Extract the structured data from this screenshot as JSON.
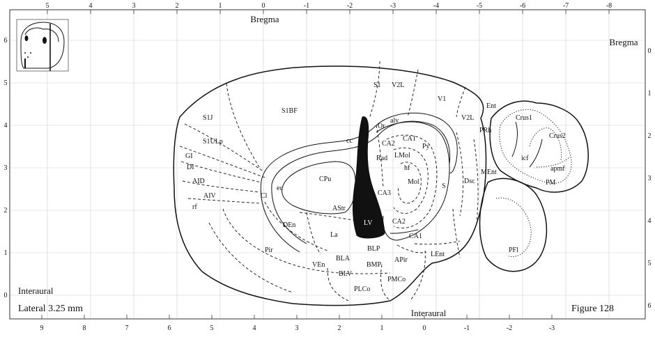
{
  "figure": {
    "lateral_label": "Lateral 3.25 mm",
    "figure_label": "Figure 128",
    "bregma_top": "Bregma",
    "bregma_right": "Bregma",
    "interaural_bottom": "Interaural",
    "interaural_left": "Interaural"
  },
  "axes": {
    "top": [
      "5",
      "4",
      "3",
      "2",
      "1",
      "0",
      "-1",
      "-2",
      "-3",
      "-4",
      "-5",
      "-6",
      "-7",
      "-8"
    ],
    "bottom": [
      "9",
      "8",
      "7",
      "6",
      "5",
      "4",
      "3",
      "2",
      "1",
      "0",
      "-1",
      "-2",
      "-3"
    ],
    "left": [
      "6",
      "5",
      "4",
      "3",
      "2",
      "1",
      "0"
    ],
    "right": [
      "0",
      "1",
      "2",
      "3",
      "4",
      "5",
      "6"
    ]
  },
  "regions": {
    "s1": "S1",
    "v2l_top": "V2L",
    "v1": "V1",
    "ent": "Ent",
    "v2l": "V2L",
    "prh": "PRh",
    "crus1": "Crus1",
    "crus2": "Crus2",
    "icf": "icf",
    "apmf": "apmf",
    "pm": "PM",
    "pfl": "PFl",
    "s1j": "S1J",
    "s1bf": "S1BF",
    "s1ulp": "S1ULp",
    "gi": "GI",
    "di": "DI",
    "aid": "AID",
    "aiv": "AIV",
    "rf": "rf",
    "cl": "Cl",
    "ec": "ec",
    "cpu": "CPu",
    "cc": "cc",
    "astr": "AStr",
    "den": "DEn",
    "la": "La",
    "lv": "LV",
    "or": "Or",
    "alv": "alv",
    "ca1_top": "CA1",
    "py": "Py",
    "ca2_top": "CA2",
    "rad": "Rad",
    "lmol": "LMol",
    "hf": "hf",
    "mol": "Mol",
    "ca3": "CA3",
    "s": "S",
    "dsc": "Dsc",
    "ment": "MEnt",
    "ca2_bottom": "CA2",
    "ca1_bottom": "CA1",
    "blp": "BLP",
    "lent": "LEnt",
    "pir": "Pir",
    "ven": "VEn",
    "bla": "BLA",
    "bmp": "BMP",
    "apir": "APir",
    "blv": "BLV",
    "plco": "PLCo",
    "pmco": "PMCo"
  }
}
